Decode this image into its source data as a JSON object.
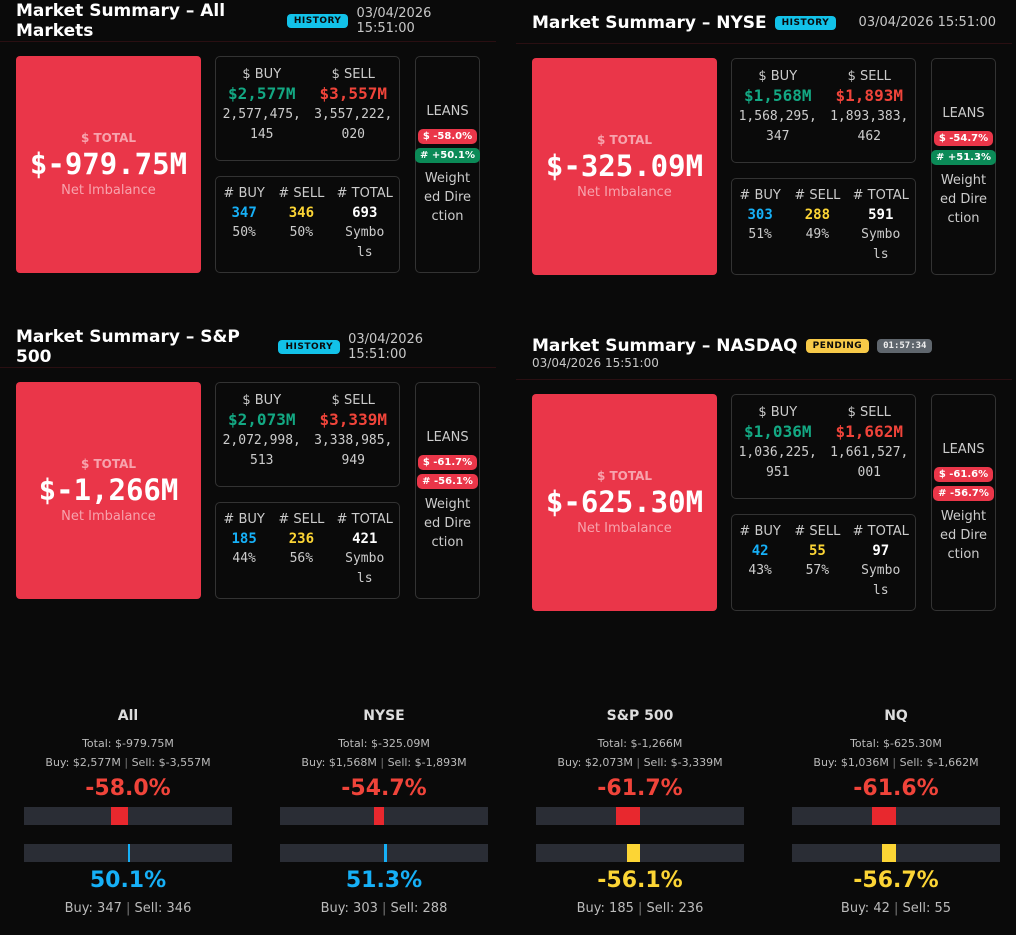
{
  "colors": {
    "total_bg": "#ea3649",
    "buy": "#13a883",
    "sell": "#f0443a",
    "count_buy": "#16b0f7",
    "count_sell": "#fcd535",
    "history_badge": "#12c2e9",
    "pending_badge": "#f7c948"
  },
  "labels": {
    "total": "$ TOTAL",
    "net": "Net Imbalance",
    "buy": "$ BUY",
    "sell": "$ SELL",
    "cbuy": "# BUY",
    "csell": "# SELL",
    "ctotal": "# TOTAL",
    "symbols": "Symbols",
    "leans": "LEANS",
    "weighted": "Weighted Direction"
  },
  "panels": [
    {
      "title": "Market Summary – All Markets",
      "badge": "HISTORY",
      "badge_type": "history",
      "timestamp": "03/04/2026 15:51:00",
      "total": "$-979.75M",
      "buy": "$2,577M",
      "buy_raw": "2,577,475,145",
      "sell": "$3,557M",
      "sell_raw": "3,557,222,020",
      "count_buy": "347",
      "count_buy_pct": "50%",
      "count_sell": "346",
      "count_sell_pct": "50%",
      "count_total": "693",
      "lean_dollar": "$ -58.0%",
      "lean_dollar_sign": "neg",
      "lean_count": "# +50.1%",
      "lean_count_sign": "pos"
    },
    {
      "title": "Market Summary – NYSE",
      "badge": "HISTORY",
      "badge_type": "history",
      "timestamp": "03/04/2026 15:51:00",
      "total": "$-325.09M",
      "buy": "$1,568M",
      "buy_raw": "1,568,295,347",
      "sell": "$1,893M",
      "sell_raw": "1,893,383,462",
      "count_buy": "303",
      "count_buy_pct": "51%",
      "count_sell": "288",
      "count_sell_pct": "49%",
      "count_total": "591",
      "lean_dollar": "$ -54.7%",
      "lean_dollar_sign": "neg",
      "lean_count": "# +51.3%",
      "lean_count_sign": "pos"
    },
    {
      "title": "Market Summary – S&P 500",
      "badge": "HISTORY",
      "badge_type": "history",
      "timestamp": "03/04/2026 15:51:00",
      "total": "$-1,266M",
      "buy": "$2,073M",
      "buy_raw": "2,072,998,513",
      "sell": "$3,339M",
      "sell_raw": "3,338,985,949",
      "count_buy": "185",
      "count_buy_pct": "44%",
      "count_sell": "236",
      "count_sell_pct": "56%",
      "count_total": "421",
      "lean_dollar": "$ -61.7%",
      "lean_dollar_sign": "neg",
      "lean_count": "# -56.1%",
      "lean_count_sign": "neg"
    },
    {
      "title": "Market Summary – NASDAQ",
      "badge": "PENDING",
      "badge_type": "pending",
      "timer": "01:57:34",
      "timestamp": "03/04/2026 15:51:00",
      "total": "$-625.30M",
      "buy": "$1,036M",
      "buy_raw": "1,036,225,951",
      "sell": "$1,662M",
      "sell_raw": "1,661,527,001",
      "count_buy": "42",
      "count_buy_pct": "43%",
      "count_sell": "55",
      "count_sell_pct": "57%",
      "count_total": "97",
      "lean_dollar": "$ -61.6%",
      "lean_dollar_sign": "neg",
      "lean_count": "# -56.7%",
      "lean_count_sign": "neg"
    }
  ],
  "summary": [
    {
      "name": "All",
      "total": "Total: $-979.75M",
      "buy": "Buy: $2,577M",
      "sell": "Sell: $-3,557M",
      "dollar_pct": "-58.0%",
      "dollar_value": -58.0,
      "count_pct": "50.1%",
      "count_value": 50.1,
      "count_color": "blue",
      "cbuy": "Buy: 347",
      "csell": "Sell: 346"
    },
    {
      "name": "NYSE",
      "total": "Total: $-325.09M",
      "buy": "Buy: $1,568M",
      "sell": "Sell: $-1,893M",
      "dollar_pct": "-54.7%",
      "dollar_value": -54.7,
      "count_pct": "51.3%",
      "count_value": 51.3,
      "count_color": "blue",
      "cbuy": "Buy: 303",
      "csell": "Sell: 288"
    },
    {
      "name": "S&P 500",
      "total": "Total: $-1,266M",
      "buy": "Buy: $2,073M",
      "sell": "Sell: $-3,339M",
      "dollar_pct": "-61.7%",
      "dollar_value": -61.7,
      "count_pct": "-56.1%",
      "count_value": -56.1,
      "count_color": "yellow",
      "cbuy": "Buy: 185",
      "csell": "Sell: 236"
    },
    {
      "name": "NQ",
      "total": "Total: $-625.30M",
      "buy": "Buy: $1,036M",
      "sell": "Sell: $-1,662M",
      "dollar_pct": "-61.6%",
      "dollar_value": -61.6,
      "count_pct": "-56.7%",
      "count_value": -56.7,
      "count_color": "yellow",
      "cbuy": "Buy: 42",
      "csell": "Sell: 55"
    }
  ]
}
